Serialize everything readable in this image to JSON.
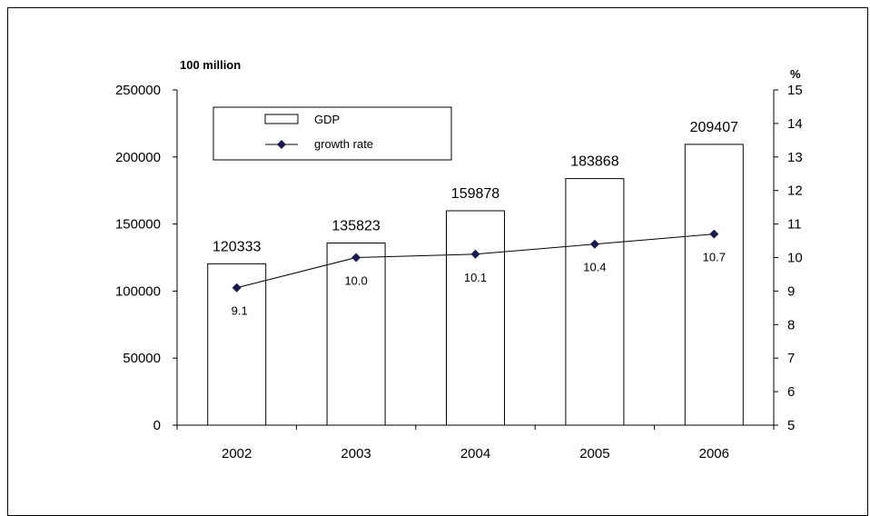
{
  "chart_data": {
    "type": "bar",
    "categories": [
      "2002",
      "2003",
      "2004",
      "2005",
      "2006"
    ],
    "series": [
      {
        "name": "GDP",
        "type": "bar",
        "axis": "left",
        "values": [
          120333,
          135823,
          159878,
          183868,
          209407
        ],
        "labels": [
          "120333",
          "135823",
          "159878",
          "183868",
          "209407"
        ]
      },
      {
        "name": "growth rate",
        "type": "line",
        "axis": "right",
        "values": [
          9.1,
          10.0,
          10.1,
          10.4,
          10.7
        ],
        "labels": [
          "9.1",
          "10.0",
          "10.1",
          "10.4",
          "10.7"
        ]
      }
    ],
    "y_left": {
      "unit_label": "100 million",
      "min": 0,
      "max": 250000,
      "ticks": [
        0,
        50000,
        100000,
        150000,
        200000,
        250000
      ]
    },
    "y_right": {
      "unit_label": "%",
      "min": 5,
      "max": 15,
      "ticks": [
        5,
        6,
        7,
        8,
        9,
        10,
        11,
        12,
        13,
        14,
        15
      ]
    },
    "legend": {
      "position": "top-left",
      "items": [
        {
          "label": "GDP",
          "kind": "bar"
        },
        {
          "label": "growth rate",
          "kind": "line"
        }
      ]
    },
    "grid": false,
    "colors": {
      "bar_fill": "#ffffff",
      "bar_stroke": "#000000",
      "line": "#000000",
      "marker": "#1a1a4e"
    }
  }
}
